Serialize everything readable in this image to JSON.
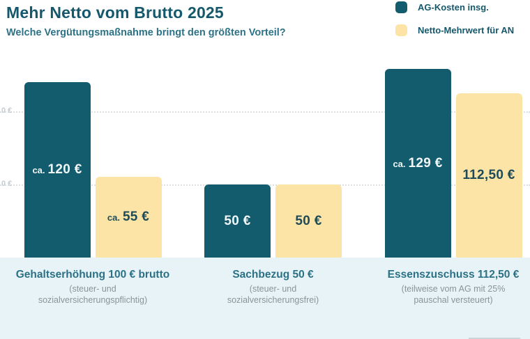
{
  "header": {
    "title": "Mehr Netto vom Brutto 2025",
    "subtitle": "Welche Vergütungsmaßnahme bringt den größten Vorteil?"
  },
  "legend": [
    {
      "label": "AG-Kosten insg.",
      "color": "#125C6E"
    },
    {
      "label": "Netto-Mehrwert für AN",
      "color": "#FBE4A6"
    }
  ],
  "y_axis": {
    "tick_labels_visible": [
      "0 €",
      "0 €"
    ]
  },
  "groups": [
    {
      "title": "Gehaltserhöhung 100 € brutto",
      "note_line1": "(steuer- und",
      "note_line2": "sozialversicherungspflichtig)",
      "bars": [
        {
          "series": "AG-Kosten insg.",
          "prefix": "ca.",
          "label": "120 €",
          "value": 120
        },
        {
          "series": "Netto-Mehrwert für AN",
          "prefix": "ca.",
          "label": "55 €",
          "value": 55
        }
      ]
    },
    {
      "title": "Sachbezug 50 €",
      "note_line1": "(steuer- und",
      "note_line2": "sozialversicherungsfrei)",
      "bars": [
        {
          "series": "AG-Kosten insg.",
          "prefix": "",
          "label": "50 €",
          "value": 50
        },
        {
          "series": "Netto-Mehrwert für AN",
          "prefix": "",
          "label": "50 €",
          "value": 50
        }
      ]
    },
    {
      "title": "Essenszuschuss 112,50 €",
      "note_line1": "(teilweise vom AG mit 25%",
      "note_line2": "pauschal versteuert)",
      "bars": [
        {
          "series": "AG-Kosten insg.",
          "prefix": "ca.",
          "label": "129 €",
          "value": 129
        },
        {
          "series": "Netto-Mehrwert für AN",
          "prefix": "",
          "label": "112,50 €",
          "value": 112.5
        }
      ]
    }
  ],
  "colors": {
    "bar_dark_teal": "#125C6E",
    "bar_yellow": "#FBE4A6",
    "title_teal": "#15586C",
    "subtitle_teal": "#2D7286",
    "note_gray": "#8A939B",
    "tick_gray": "#C5CBD0",
    "gridline": "#DCE0E3",
    "footer_background": "#E8F3F8"
  },
  "chart_data": {
    "type": "bar",
    "title": "Mehr Netto vom Brutto 2025",
    "subtitle": "Welche Vergütungsmaßnahme bringt den größten Vorteil?",
    "categories": [
      "Gehaltserhöhung 100 € brutto (steuer- und sozialversicherungspflichtig)",
      "Sachbezug 50 € (steuer- und sozialversicherungsfrei)",
      "Essenszuschuss 112,50 € (teilweise vom AG mit 25% pauschal versteuert)"
    ],
    "series": [
      {
        "name": "AG-Kosten insg.",
        "values": [
          120,
          50,
          129
        ],
        "labels": [
          "ca. 120 €",
          "50 €",
          "ca. 129 €"
        ],
        "color": "#125C6E"
      },
      {
        "name": "Netto-Mehrwert für AN",
        "values": [
          55,
          50,
          112.5
        ],
        "labels": [
          "ca. 55 €",
          "50 €",
          "112,50 €"
        ],
        "color": "#FBE4A6"
      }
    ],
    "unit": "€",
    "ylabel": "",
    "xlabel": "",
    "ylim": [
      0,
      140
    ],
    "gridlines_values": [
      50,
      100
    ],
    "grid": "horizontal dotted, y-axis tick labels cropped at left edge (visible as '0 €')",
    "legend_position": "top-right",
    "data_labels_inside_bars": true
  }
}
